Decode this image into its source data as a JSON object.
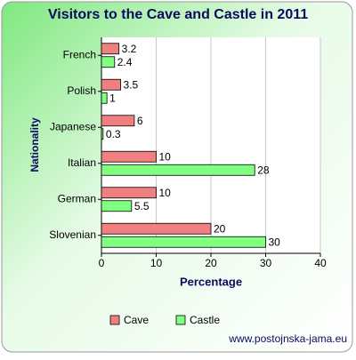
{
  "chart_data": {
    "type": "hbar",
    "title": "Visitors to the Cave and Castle in 2011",
    "x_label": "Percentage",
    "y_label": "Nationality",
    "footer": "www.postojnska-jama.eu",
    "categories": [
      "French",
      "Polish",
      "Japanese",
      "Italian",
      "German",
      "Slovenian"
    ],
    "series": [
      {
        "name": "Cave",
        "color": "#f08080",
        "values": [
          3.2,
          3.5,
          6,
          10,
          10,
          20
        ]
      },
      {
        "name": "Castle",
        "color": "#80ff80",
        "values": [
          2.4,
          1,
          0.3,
          28,
          5.5,
          30
        ]
      }
    ],
    "xlim": [
      0,
      40
    ],
    "xticks": [
      0,
      10,
      20,
      30,
      40
    ],
    "grid": true
  }
}
